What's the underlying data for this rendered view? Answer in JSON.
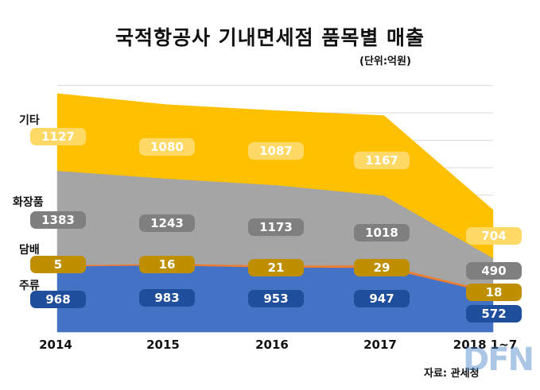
{
  "chart_data": {
    "type": "area",
    "stacked": true,
    "title": "국적항공사 기내면세점 품목별 매출",
    "unit": "(단위:억원)",
    "categories": [
      "2014",
      "2015",
      "2016",
      "2017",
      "2018 1~7"
    ],
    "series": [
      {
        "name": "주류",
        "values": [
          968,
          983,
          953,
          947,
          572
        ],
        "color": "#4472c4",
        "badge_color": "#1f4e9c",
        "badge_text": "#ffffff"
      },
      {
        "name": "담배",
        "values": [
          5,
          16,
          21,
          29,
          18
        ],
        "color": "#ed7d31",
        "badge_color": "#bf8f00",
        "badge_text": "#ffffff"
      },
      {
        "name": "화장품",
        "values": [
          1383,
          1243,
          1173,
          1018,
          490
        ],
        "color": "#a5a5a5",
        "badge_color": "#7f7f7f",
        "badge_text": "#ffffff"
      },
      {
        "name": "기타",
        "values": [
          1127,
          1080,
          1087,
          1167,
          704
        ],
        "color": "#ffc000",
        "badge_color": "#ffd966",
        "badge_text": "#ffffff"
      }
    ],
    "ylim": [
      0,
      3600
    ],
    "grid": true,
    "grid_color": "#d9d9d9"
  },
  "source_note": "자료: 관세청",
  "watermark": "DFN"
}
